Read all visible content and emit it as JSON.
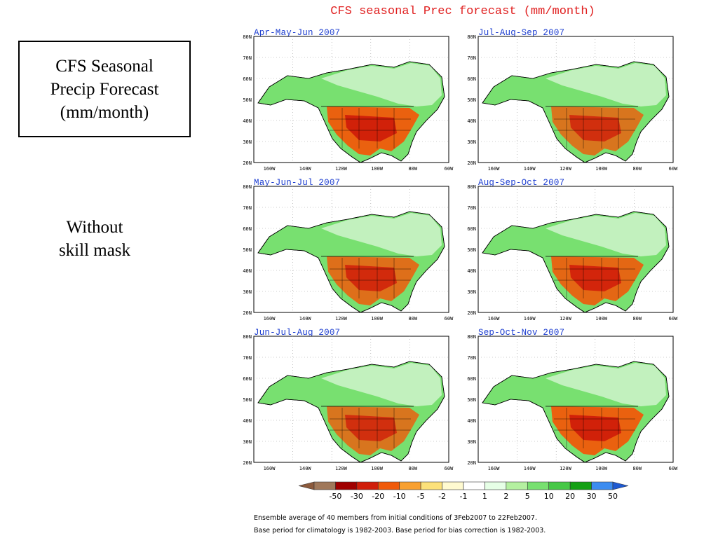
{
  "slide": {
    "title_lines": [
      "CFS Seasonal",
      "Precip Forecast",
      "(mm/month)"
    ],
    "note_lines": [
      "Without",
      "skill mask"
    ]
  },
  "figure": {
    "title": "CFS seasonal Prec forecast (mm/month)",
    "lat_labels": [
      "80N",
      "70N",
      "60N",
      "50N",
      "40N",
      "30N",
      "20N"
    ],
    "lon_labels": [
      "160W",
      "140W",
      "120W",
      "100W",
      "80W",
      "60W"
    ],
    "panels": [
      {
        "title": "Apr-May-Jun 2007",
        "dry_level": 0.95
      },
      {
        "title": "Jul-Aug-Sep 2007",
        "dry_level": 0.8
      },
      {
        "title": "May-Jun-Jul 2007",
        "dry_level": 0.85
      },
      {
        "title": "Aug-Sep-Oct 2007",
        "dry_level": 0.9
      },
      {
        "title": "Jun-Jul-Aug 2007",
        "dry_level": 0.8
      },
      {
        "title": "Sep-Oct-Nov 2007",
        "dry_level": 0.95
      }
    ],
    "legend": {
      "labels": [
        "-50",
        "-30",
        "-20",
        "-10",
        "-5",
        "-2",
        "-1",
        "1",
        "2",
        "5",
        "10",
        "20",
        "30",
        "50"
      ],
      "colors": [
        "#8c5a3c",
        "#a0785a",
        "#a00000",
        "#d01e0a",
        "#f05a0a",
        "#f8a030",
        "#fce17a",
        "#fffad0",
        "#ffffff",
        "#e6ffe6",
        "#b4f0a0",
        "#78e070",
        "#46c846",
        "#14a014",
        "#3c8cf0",
        "#1e5ad2"
      ]
    },
    "footnote_lines": [
      "Ensemble average of 40 members from initial conditions of 3Feb2007 to 22Feb2007.",
      "Base period for climatology is 1982-2003. Base period for bias correction is 1982-2003."
    ]
  },
  "colors": {
    "title_red": "#e02020",
    "panel_title_blue": "#1e3fd0",
    "wet_green": "#78e070",
    "dry_orange": "#f05a0a"
  }
}
